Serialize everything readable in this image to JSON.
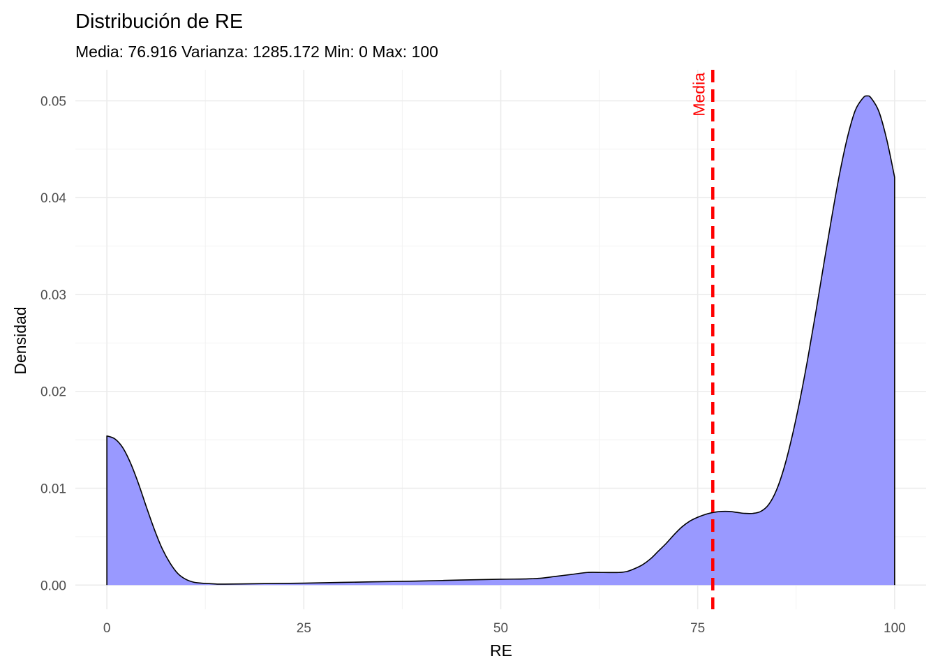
{
  "chart_data": {
    "type": "area",
    "title": "Distribución de RE",
    "subtitle": "Media: 76.916 Varianza: 1285.172 Min: 0 Max: 100",
    "xlabel": "RE",
    "ylabel": "Densidad",
    "xlim": [
      -4,
      104
    ],
    "ylim": [
      -0.0025,
      0.0532
    ],
    "x_ticks": [
      {
        "value": 0,
        "label": "0"
      },
      {
        "value": 25,
        "label": "25"
      },
      {
        "value": 50,
        "label": "50"
      },
      {
        "value": 75,
        "label": "75"
      },
      {
        "value": 100,
        "label": "100"
      }
    ],
    "y_ticks": [
      {
        "value": 0,
        "label": "0.00"
      },
      {
        "value": 0.01,
        "label": "0.01"
      },
      {
        "value": 0.02,
        "label": "0.02"
      },
      {
        "value": 0.03,
        "label": "0.03"
      },
      {
        "value": 0.04,
        "label": "0.04"
      },
      {
        "value": 0.05,
        "label": "0.05"
      }
    ],
    "grid": true,
    "fill_color": "#9999ff",
    "line_color": "#000000",
    "density": {
      "x": [
        0,
        1,
        2,
        3,
        4,
        5,
        6,
        7,
        8,
        9,
        10,
        11,
        12,
        13,
        14,
        15,
        17,
        20,
        25,
        30,
        35,
        40,
        45,
        50,
        53,
        55,
        57,
        59,
        61,
        63,
        65,
        66,
        67,
        68,
        69,
        70,
        71,
        72,
        73,
        74,
        75,
        76,
        77,
        78,
        79,
        80,
        81,
        82,
        83,
        84,
        85,
        86,
        87,
        88,
        89,
        90,
        91,
        92,
        93,
        94,
        95,
        96,
        96.5,
        97,
        98,
        99,
        100
      ],
      "y": [
        0.0154,
        0.0151,
        0.0142,
        0.0126,
        0.0105,
        0.0081,
        0.0058,
        0.0038,
        0.0023,
        0.0012,
        0.0006,
        0.0003,
        0.0002,
        0.00015,
        0.0001,
        0.0001,
        0.00012,
        0.00015,
        0.0002,
        0.00028,
        0.00035,
        0.00042,
        0.00052,
        0.0006,
        0.00063,
        0.0007,
        0.0009,
        0.0011,
        0.0013,
        0.0013,
        0.0013,
        0.0014,
        0.0017,
        0.0021,
        0.0027,
        0.0035,
        0.0043,
        0.0052,
        0.006,
        0.0066,
        0.007,
        0.0073,
        0.0075,
        0.0076,
        0.0076,
        0.0075,
        0.0074,
        0.0074,
        0.0076,
        0.0083,
        0.0098,
        0.0122,
        0.0154,
        0.0192,
        0.0235,
        0.0282,
        0.0331,
        0.0379,
        0.0424,
        0.0462,
        0.049,
        0.0503,
        0.0505,
        0.0503,
        0.0489,
        0.046,
        0.0421
      ]
    },
    "mean_line": {
      "x": 76.916,
      "label": "Media",
      "color": "#ff0000",
      "style": "dashed"
    }
  }
}
